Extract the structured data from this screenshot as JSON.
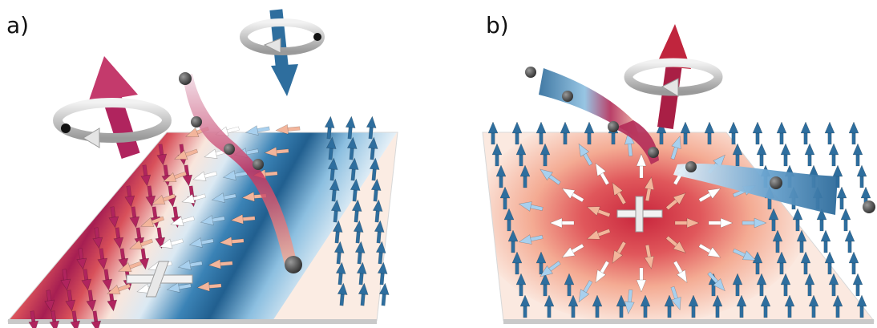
{
  "panels": {
    "a": {
      "label": "a)"
    },
    "b": {
      "label": "b)"
    }
  },
  "colors": {
    "magenta_arrow": "#b0245e",
    "blue_arrow": "#2e6e9e",
    "light_blue_arrow": "#a8d0ee",
    "white_arrow": "#ffffff",
    "crimson_core": "#c0253d",
    "salmon": "#f3b59b",
    "ring_gray": "#c8c8c8",
    "ball_gray": "#555555"
  },
  "icons": [
    "rotation-ring-icon",
    "spin-arrow-icon",
    "cross-marker-icon",
    "electron-ball-icon"
  ]
}
